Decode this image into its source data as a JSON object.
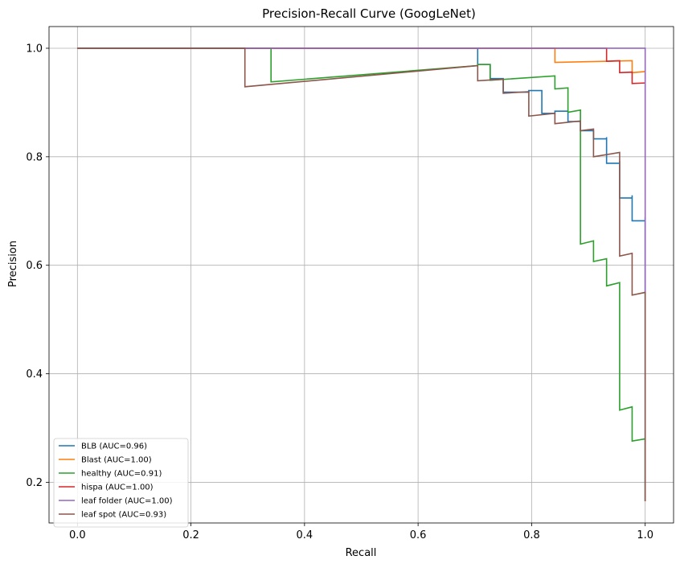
{
  "chart_data": {
    "type": "line",
    "title": "Precision-Recall Curve (GoogLeNet)",
    "xlabel": "Recall",
    "ylabel": "Precision",
    "xlim": [
      -0.05,
      1.05
    ],
    "ylim": [
      0.125,
      1.04
    ],
    "xticks": [
      0.0,
      0.2,
      0.4,
      0.6,
      0.8,
      1.0
    ],
    "xtick_labels": [
      "0.0",
      "0.2",
      "0.4",
      "0.6",
      "0.8",
      "1.0"
    ],
    "yticks": [
      0.2,
      0.4,
      0.6,
      0.8,
      1.0
    ],
    "ytick_labels": [
      "0.2",
      "0.4",
      "0.6",
      "0.8",
      "1.0"
    ],
    "grid": true,
    "legend_position": "lower-left",
    "series": [
      {
        "name": "BLB (AUC=0.96)",
        "color": "#1f77b4",
        "points": [
          [
            0,
            1
          ],
          [
            0.705,
            1
          ],
          [
            0.705,
            0.97
          ],
          [
            0.727,
            0.97
          ],
          [
            0.727,
            0.944
          ],
          [
            0.75,
            0.944
          ],
          [
            0.75,
            0.919
          ],
          [
            0.795,
            0.919
          ],
          [
            0.795,
            0.922
          ],
          [
            0.818,
            0.922
          ],
          [
            0.818,
            0.88
          ],
          [
            0.841,
            0.88
          ],
          [
            0.841,
            0.884
          ],
          [
            0.864,
            0.884
          ],
          [
            0.864,
            0.865
          ],
          [
            0.886,
            0.865
          ],
          [
            0.886,
            0.848
          ],
          [
            0.909,
            0.848
          ],
          [
            0.909,
            0.833
          ],
          [
            0.932,
            0.833
          ],
          [
            0.932,
            0.836
          ],
          [
            0.932,
            0.788
          ],
          [
            0.955,
            0.788
          ],
          [
            0.955,
            0.792
          ],
          [
            0.955,
            0.724
          ],
          [
            0.977,
            0.724
          ],
          [
            0.977,
            0.729
          ],
          [
            0.977,
            0.682
          ],
          [
            1.0,
            0.682
          ],
          [
            1.0,
            0.688
          ],
          [
            1.0,
            0.165
          ]
        ]
      },
      {
        "name": "Blast (AUC=1.00)",
        "color": "#ff7f0e",
        "points": [
          [
            0,
            1
          ],
          [
            0.841,
            1
          ],
          [
            0.841,
            0.974
          ],
          [
            0.977,
            0.977
          ],
          [
            0.977,
            0.955
          ],
          [
            1.0,
            0.957
          ]
        ]
      },
      {
        "name": "healthy (AUC=0.91)",
        "color": "#2ca02c",
        "points": [
          [
            0,
            1
          ],
          [
            0.341,
            1
          ],
          [
            0.341,
            0.938
          ],
          [
            0.705,
            0.968
          ],
          [
            0.705,
            0.97
          ],
          [
            0.727,
            0.97
          ],
          [
            0.727,
            0.941
          ],
          [
            0.841,
            0.949
          ],
          [
            0.841,
            0.925
          ],
          [
            0.864,
            0.927
          ],
          [
            0.864,
            0.882
          ],
          [
            0.886,
            0.886
          ],
          [
            0.886,
            0.639
          ],
          [
            0.909,
            0.645
          ],
          [
            0.909,
            0.607
          ],
          [
            0.932,
            0.612
          ],
          [
            0.932,
            0.562
          ],
          [
            0.955,
            0.568
          ],
          [
            0.955,
            0.333
          ],
          [
            0.977,
            0.339
          ],
          [
            0.977,
            0.276
          ],
          [
            1.0,
            0.28
          ],
          [
            1.0,
            0.165
          ]
        ]
      },
      {
        "name": "hispa (AUC=1.00)",
        "color": "#d62728",
        "points": [
          [
            0,
            1
          ],
          [
            0.932,
            1
          ],
          [
            0.932,
            0.976
          ],
          [
            0.955,
            0.977
          ],
          [
            0.955,
            0.955
          ],
          [
            0.977,
            0.956
          ],
          [
            0.977,
            0.935
          ],
          [
            1.0,
            0.936
          ]
        ]
      },
      {
        "name": "leaf folder (AUC=1.00)",
        "color": "#9467bd",
        "points": [
          [
            0,
            1
          ],
          [
            1.0,
            1
          ],
          [
            1.0,
            0.55
          ]
        ]
      },
      {
        "name": "leaf spot (AUC=0.93)",
        "color": "#8c564b",
        "points": [
          [
            0,
            1
          ],
          [
            0.295,
            1
          ],
          [
            0.295,
            0.929
          ],
          [
            0.705,
            0.968
          ],
          [
            0.705,
            0.94
          ],
          [
            0.75,
            0.943
          ],
          [
            0.75,
            0.917
          ],
          [
            0.795,
            0.92
          ],
          [
            0.795,
            0.875
          ],
          [
            0.841,
            0.88
          ],
          [
            0.841,
            0.861
          ],
          [
            0.886,
            0.866
          ],
          [
            0.886,
            0.848
          ],
          [
            0.909,
            0.851
          ],
          [
            0.909,
            0.8
          ],
          [
            0.955,
            0.808
          ],
          [
            0.955,
            0.617
          ],
          [
            0.977,
            0.622
          ],
          [
            0.977,
            0.545
          ],
          [
            1.0,
            0.55
          ],
          [
            1.0,
            0.165
          ]
        ]
      }
    ]
  }
}
